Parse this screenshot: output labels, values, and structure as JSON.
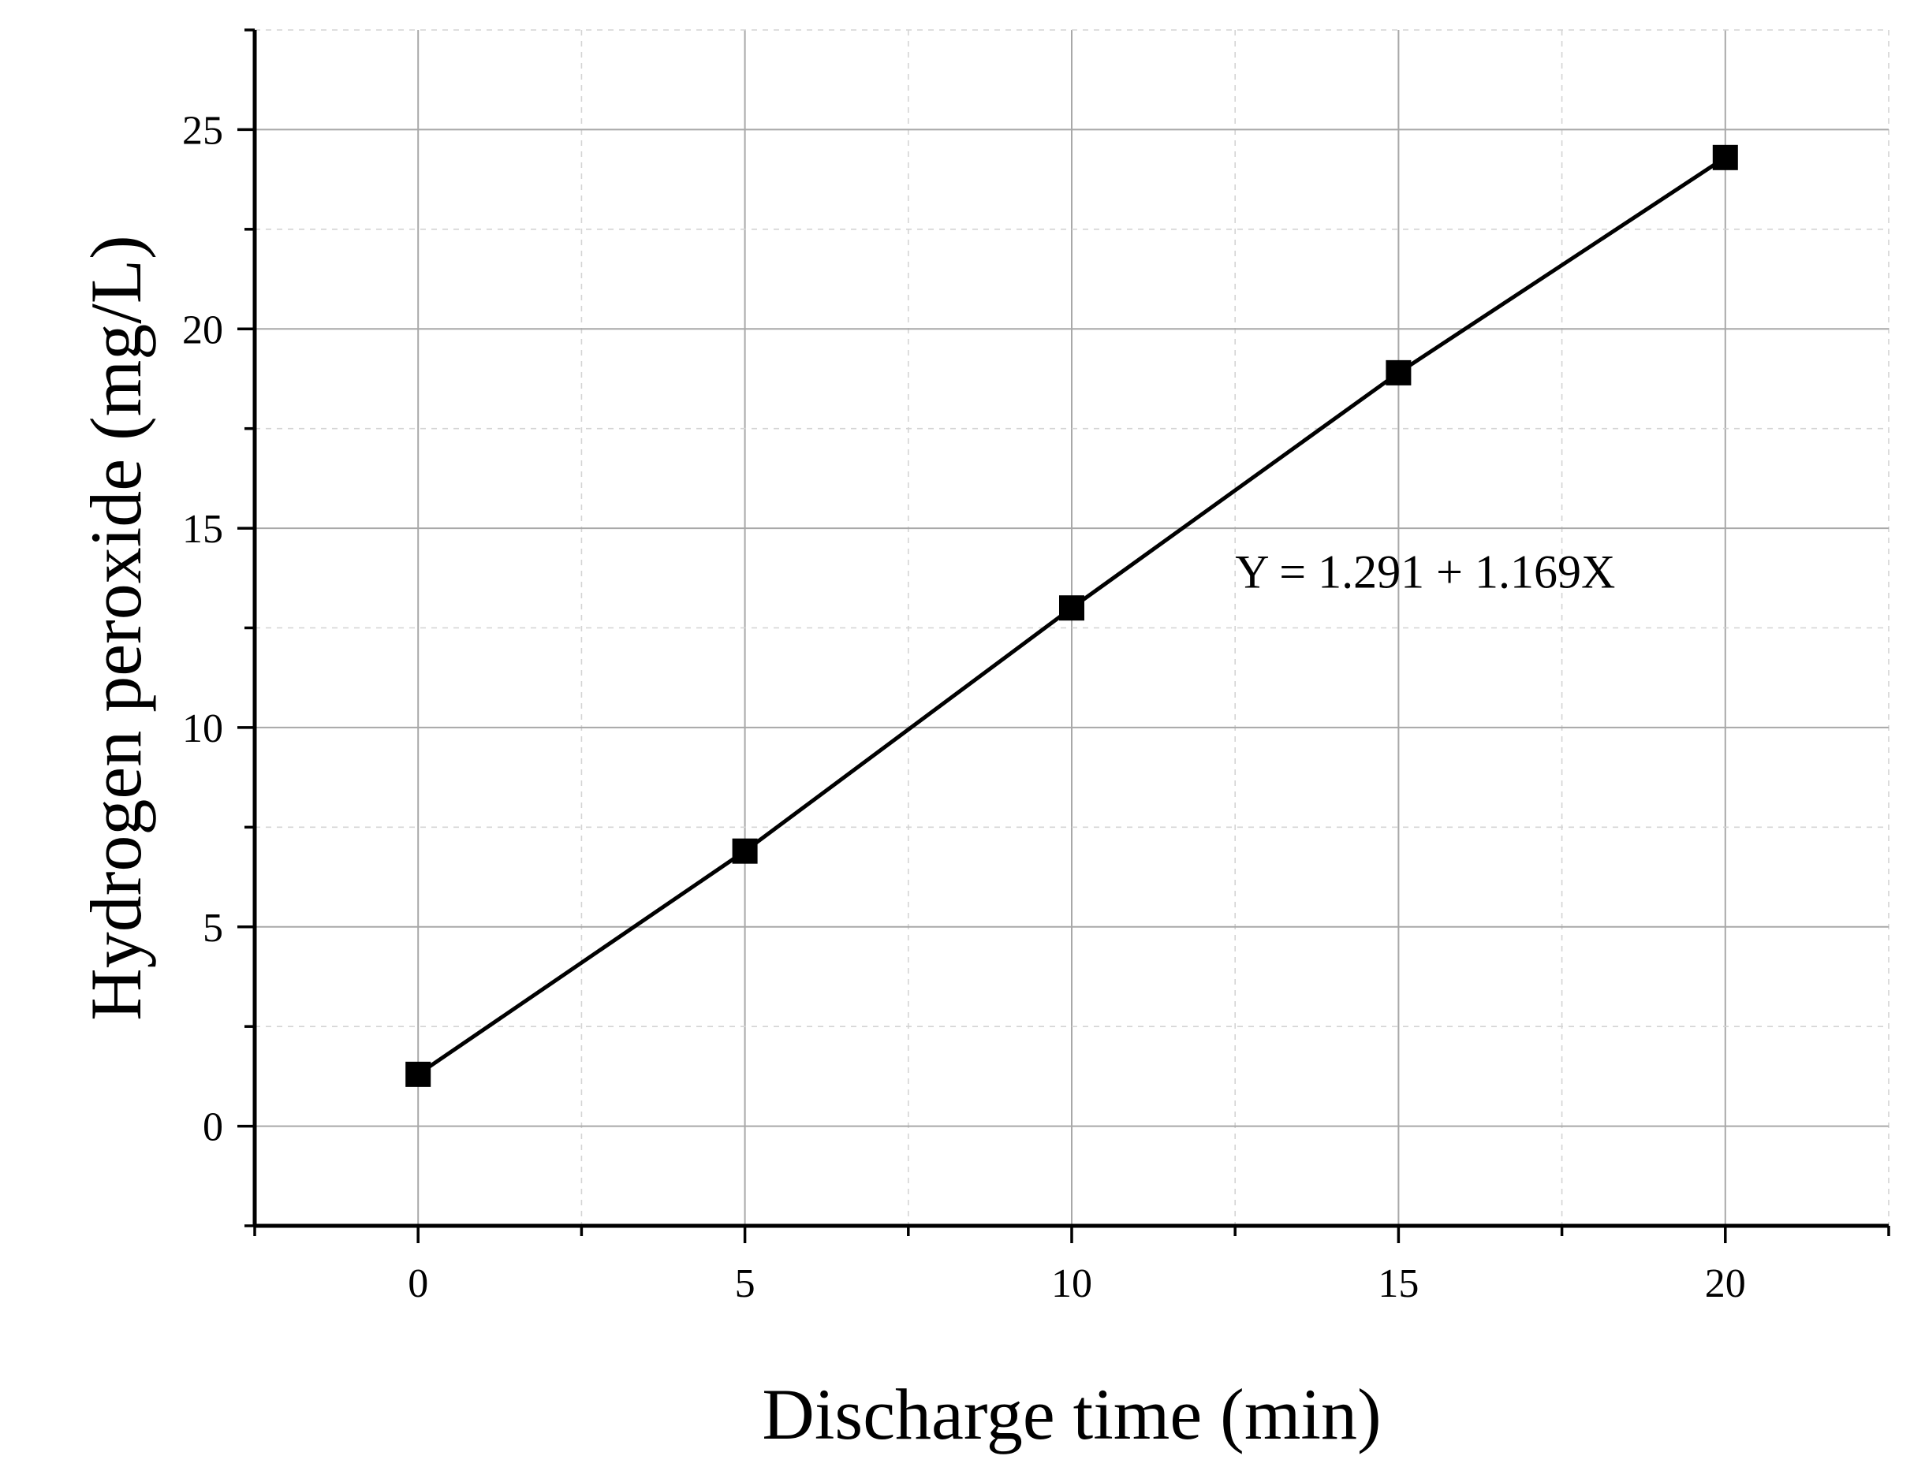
{
  "chart_data": {
    "type": "line",
    "xlabel": "Discharge time (min)",
    "ylabel": "Hydrogen peroxide (mg/L)",
    "xlim": [
      -2.5,
      22.5
    ],
    "ylim": [
      -2.5,
      27.5
    ],
    "x_ticks": [
      0,
      5,
      10,
      15,
      20
    ],
    "y_ticks": [
      0,
      5,
      10,
      15,
      20,
      25
    ],
    "grid": true,
    "series": [
      {
        "x": [
          0,
          5,
          10,
          15,
          20
        ],
        "y": [
          1.3,
          6.9,
          13.0,
          18.9,
          24.3
        ],
        "marker": "square",
        "color": "#000000"
      }
    ],
    "annotations": [
      {
        "text": "Y = 1.291 + 1.169X",
        "x": 12.5,
        "y": 13.9
      }
    ]
  }
}
